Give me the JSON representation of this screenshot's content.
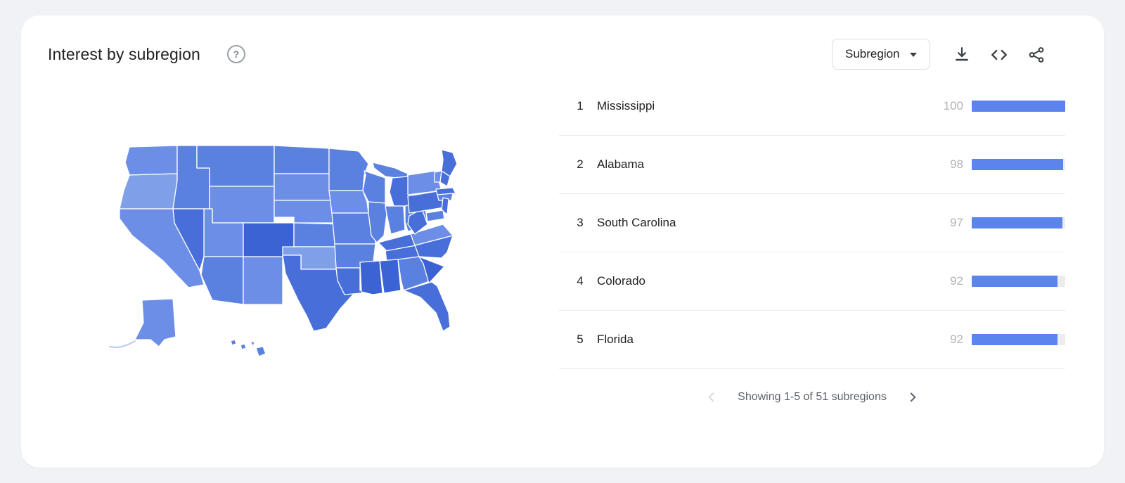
{
  "header": {
    "title": "Interest by subregion",
    "help_icon": "question-mark-circle-icon",
    "subregion_selector": {
      "label": "Subregion"
    },
    "actions": [
      {
        "name": "download",
        "icon": "download-icon"
      },
      {
        "name": "embed",
        "icon": "code-icon"
      },
      {
        "name": "share",
        "icon": "share-icon"
      }
    ]
  },
  "chart_data": {
    "type": "bar",
    "title": "Interest by subregion",
    "categories": [
      "Mississippi",
      "Alabama",
      "South Carolina",
      "Colorado",
      "Florida"
    ],
    "ranks": [
      1,
      2,
      3,
      4,
      5
    ],
    "values": [
      100,
      98,
      97,
      92,
      92
    ],
    "xlim": [
      0,
      100
    ],
    "orientation": "horizontal",
    "bar_color": "#5b84ec",
    "track_color": "#ececec",
    "legend_position": "none"
  },
  "list": {
    "rows": [
      {
        "rank": "1",
        "name": "Mississippi",
        "value": "100"
      },
      {
        "rank": "2",
        "name": "Alabama",
        "value": "98"
      },
      {
        "rank": "3",
        "name": "South Carolina",
        "value": "97"
      },
      {
        "rank": "4",
        "name": "Colorado",
        "value": "92"
      },
      {
        "rank": "5",
        "name": "Florida",
        "value": "92"
      }
    ]
  },
  "pagination": {
    "prev_icon": "chevron-left-icon",
    "next_icon": "chevron-right-icon",
    "label": "Showing 1-5 of 51 subregions"
  },
  "map": {
    "type": "choropleth-us-states",
    "palette": {
      "s1": "#7f9fe9",
      "s2": "#6c8ee6",
      "s3": "#5a80e0",
      "s4": "#486fd9",
      "s5": "#3c63d3"
    },
    "states": {
      "WA": "s2",
      "OR": "s1",
      "ID": "s3",
      "MT": "s3",
      "WY": "s2",
      "UT": "s2",
      "NV": "s4",
      "CA": "s2",
      "AZ": "s3",
      "NM": "s2",
      "CO": "s5",
      "ND": "s3",
      "SD": "s2",
      "NE": "s2",
      "KS": "s3",
      "OK": "s1",
      "TX": "s4",
      "MN": "s3",
      "IA": "s2",
      "MO": "s3",
      "AR": "s3",
      "LA": "s4",
      "WI": "s3",
      "IL": "s3",
      "MIUP": "s3",
      "MI": "s4",
      "IN": "s3",
      "OH": "s3",
      "KY": "s4",
      "TN": "s4",
      "MS": "s5",
      "AL": "s5",
      "GA": "s3",
      "SC": "s5",
      "FL": "s4",
      "NC": "s4",
      "VA": "s2",
      "WV": "s4",
      "PA": "s4",
      "NY": "s2",
      "ME": "s4",
      "VT": "s2",
      "NH": "s4",
      "MA": "s4",
      "CTRI": "s3",
      "NJ": "s4",
      "MDDE": "s3",
      "AK": "s2",
      "HI1": "s3",
      "HI2": "s3",
      "HI3": "s3",
      "HI4": "s3"
    }
  }
}
